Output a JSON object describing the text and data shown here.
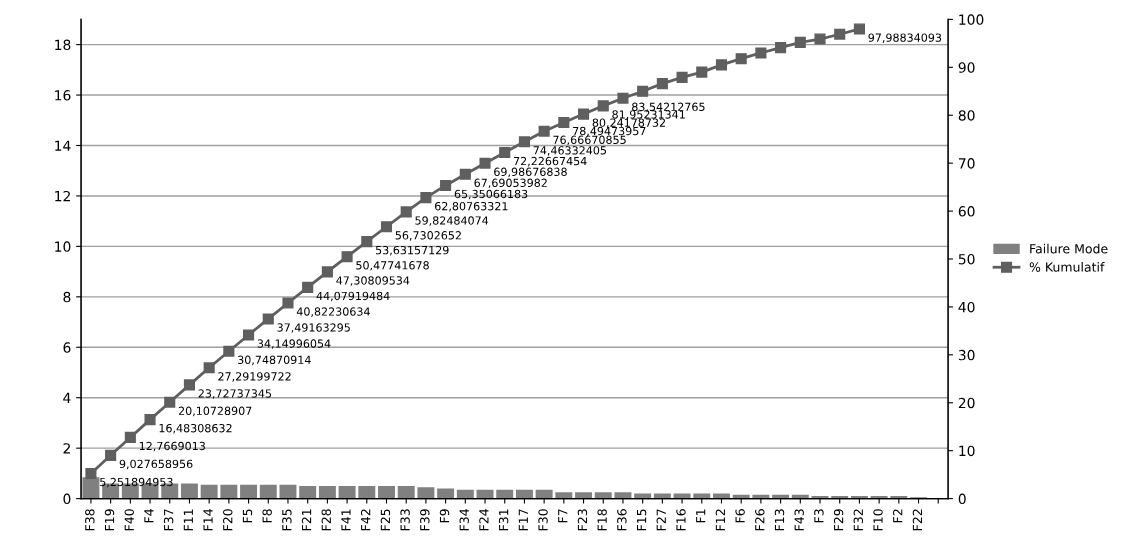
{
  "chart_data": {
    "type": "bar",
    "categories": [
      "F38",
      "F19",
      "F40",
      "F4",
      "F37",
      "F11",
      "F14",
      "F20",
      "F5",
      "F8",
      "F35",
      "F21",
      "F28",
      "F41",
      "F42",
      "F25",
      "F33",
      "F39",
      "F9",
      "F34",
      "F24",
      "F31",
      "F17",
      "F30",
      "F7",
      "F23",
      "F18",
      "F36",
      "F15",
      "F27",
      "F16",
      "F1",
      "F12",
      "F6",
      "F26",
      "F13",
      "F43",
      "F3",
      "F29",
      "F32",
      "F10",
      "F2",
      "F22",
      null
    ],
    "series": [
      {
        "name": "Failure Mode",
        "color": "#808080",
        "values": [
          0.85,
          0.6,
          0.6,
          0.6,
          0.6,
          0.6,
          0.55,
          0.55,
          0.55,
          0.55,
          0.55,
          0.5,
          0.5,
          0.5,
          0.5,
          0.5,
          0.5,
          0.45,
          0.4,
          0.35,
          0.35,
          0.35,
          0.35,
          0.35,
          0.25,
          0.25,
          0.25,
          0.25,
          0.2,
          0.2,
          0.2,
          0.2,
          0.2,
          0.15,
          0.15,
          0.15,
          0.15,
          0.1,
          0.1,
          0.1,
          0.1,
          0.1,
          0.05,
          null
        ]
      },
      {
        "name": "% Kumulatif",
        "type": "line",
        "axis": "y2",
        "color": "#5f5f5f",
        "marker": "square",
        "values": [
          5.251894953,
          9.027658956,
          12.7669013,
          16.48308632,
          20.10728907,
          23.72737345,
          27.29199722,
          30.74870914,
          34.14996054,
          37.49163295,
          40.82230634,
          44.07919484,
          47.30809534,
          50.47741678,
          53.63157129,
          56.7302652,
          59.82484074,
          62.80763321,
          65.35066183,
          67.69053982,
          69.98676838,
          72.22667454,
          74.46332405,
          76.66670855,
          78.49473957,
          80.24178732,
          81.95231341,
          83.54212765,
          85.0,
          86.6,
          87.9,
          89.0,
          90.5,
          91.8,
          93.0,
          94.1,
          95.2,
          95.9,
          96.9,
          97.98834093,
          null,
          null,
          null,
          null
        ],
        "value_labels": [
          "5,251894953",
          "9,027658956",
          "12,7669013",
          "16,48308632",
          "20,10728907",
          "23,72737345",
          "27,29199722",
          "30,74870914",
          "34,14996054",
          "37,49163295",
          "40,82230634",
          "44,07919484",
          "47,30809534",
          "50,47741678",
          "53,63157129",
          "56,7302652",
          "59,82484074",
          "62,80763321",
          "65,35066183",
          "67,69053982",
          "69,98676838",
          "72,22667454",
          "74,46332405",
          "76,66670855",
          "78,49473957",
          "80,24178732",
          "81,95231341",
          "83,54212765",
          null,
          null,
          null,
          null,
          null,
          null,
          null,
          null,
          null,
          null,
          null,
          "97,98834093",
          null,
          null,
          null,
          null
        ]
      }
    ],
    "ylim": [
      0,
      19
    ],
    "yticks": [
      0,
      2,
      4,
      6,
      8,
      10,
      12,
      14,
      16,
      18
    ],
    "y2lim": [
      0,
      100
    ],
    "y2ticks": [
      0,
      10,
      20,
      30,
      40,
      50,
      60,
      70,
      80,
      90,
      100
    ],
    "grid": "y",
    "legend": "right"
  }
}
